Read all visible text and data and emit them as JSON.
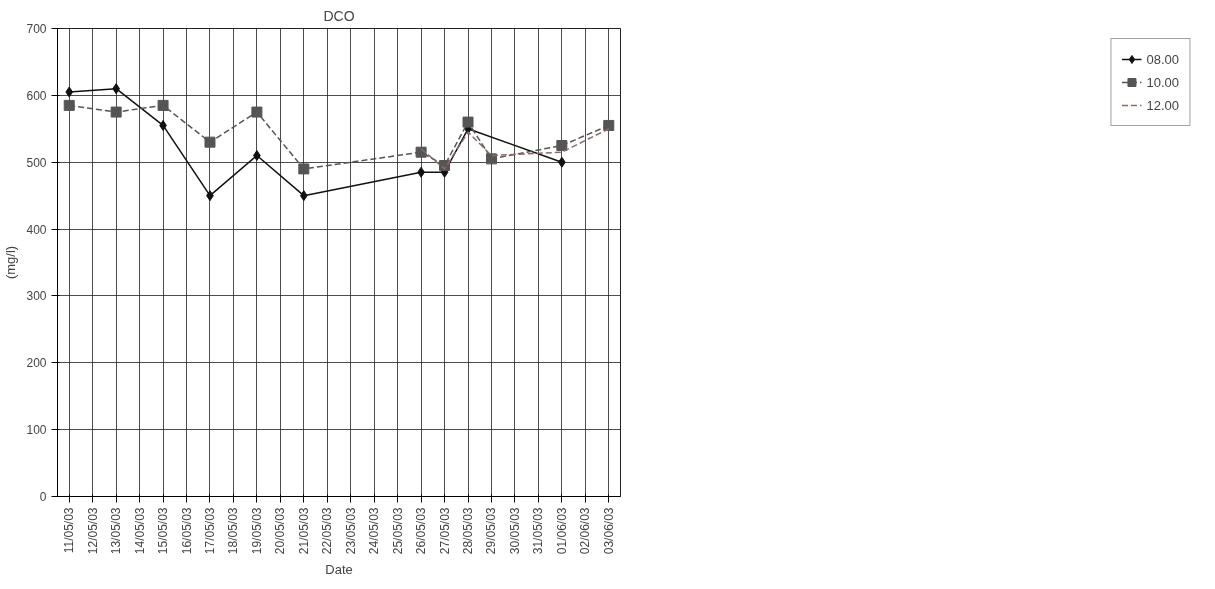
{
  "chart_data": {
    "type": "line",
    "title": "DCO",
    "xlabel": "Date",
    "ylabel": "(mg/l)",
    "categories": [
      "11/05/03",
      "12/05/03",
      "13/05/03",
      "14/05/03",
      "15/05/03",
      "16/05/03",
      "17/05/03",
      "18/05/03",
      "19/05/03",
      "20/05/03",
      "21/05/03",
      "22/05/03",
      "23/05/03",
      "24/05/03",
      "25/05/03",
      "26/05/03",
      "27/05/03",
      "28/05/03",
      "29/05/03",
      "30/05/03",
      "31/05/03",
      "01/06/03",
      "02/06/03",
      "03/06/03"
    ],
    "series": [
      {
        "name": "08.00",
        "color": "#111111",
        "marker": "diamond",
        "line_style": "solid",
        "values": [
          605,
          null,
          610,
          null,
          555,
          null,
          450,
          null,
          510,
          null,
          450,
          null,
          null,
          null,
          null,
          485,
          485,
          550,
          null,
          null,
          null,
          500,
          null,
          null
        ]
      },
      {
        "name": "10.00",
        "color": "#555555",
        "marker": "square",
        "line_style": "dashed",
        "values": [
          585,
          null,
          575,
          null,
          585,
          null,
          530,
          null,
          575,
          null,
          490,
          null,
          null,
          null,
          null,
          515,
          495,
          560,
          505,
          null,
          null,
          525,
          null,
          555
        ]
      },
      {
        "name": "12.00",
        "color": "#8a6a6a",
        "marker": "none",
        "line_style": "dashed",
        "values": [
          null,
          null,
          null,
          null,
          null,
          null,
          null,
          null,
          null,
          null,
          null,
          null,
          null,
          null,
          null,
          520,
          490,
          545,
          510,
          null,
          null,
          515,
          null,
          550
        ]
      }
    ],
    "ylim": [
      0,
      700
    ],
    "yticks": [
      0,
      100,
      200,
      300,
      400,
      500,
      600,
      700
    ],
    "grid": true,
    "legend": "right"
  }
}
